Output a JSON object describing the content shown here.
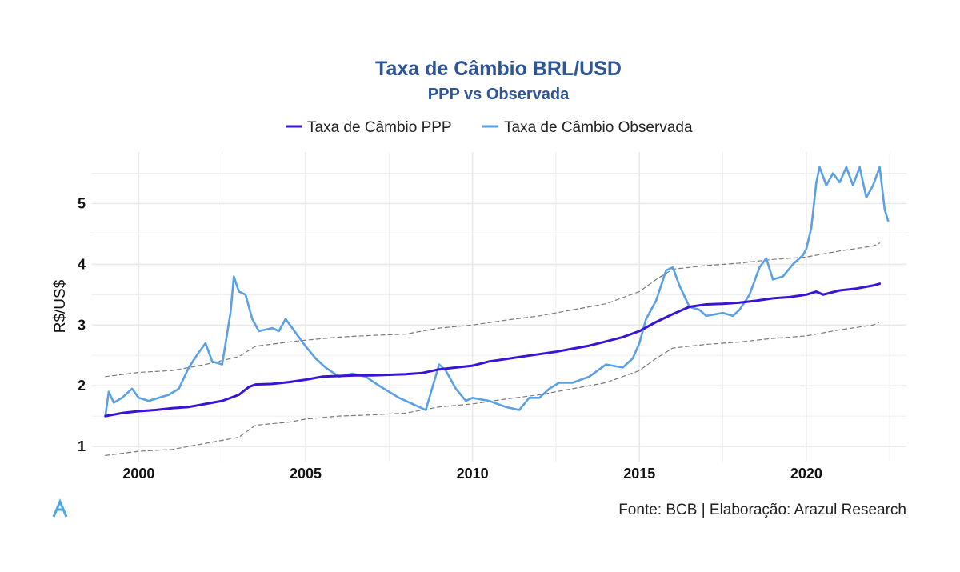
{
  "chart_data": {
    "type": "line",
    "title": "Taxa de Câmbio BRL/USD",
    "subtitle": "PPP vs Observada",
    "xlabel": "",
    "ylabel": "R$/US$",
    "xlim": [
      1998.6,
      2023.0
    ],
    "ylim": [
      0.75,
      5.85
    ],
    "x_ticks": [
      2000,
      2005,
      2010,
      2015,
      2020
    ],
    "y_ticks": [
      1,
      2,
      3,
      4,
      5
    ],
    "grid": true,
    "legend_position": "top",
    "colors": {
      "title": "#2d5597",
      "ppp": "#3a14d6",
      "observada": "#5aa0e6",
      "band": "#7a7a7a",
      "grid": "#e9e9e9",
      "logo": "#4aa8e0"
    },
    "series": [
      {
        "name": "Taxa de Câmbio PPP",
        "style": "solid",
        "points": [
          [
            1999.0,
            1.5
          ],
          [
            1999.5,
            1.55
          ],
          [
            2000.0,
            1.58
          ],
          [
            2000.5,
            1.6
          ],
          [
            2001.0,
            1.63
          ],
          [
            2001.5,
            1.65
          ],
          [
            2002.0,
            1.7
          ],
          [
            2002.5,
            1.75
          ],
          [
            2003.0,
            1.85
          ],
          [
            2003.3,
            1.98
          ],
          [
            2003.5,
            2.02
          ],
          [
            2004.0,
            2.03
          ],
          [
            2004.5,
            2.06
          ],
          [
            2005.0,
            2.1
          ],
          [
            2005.5,
            2.15
          ],
          [
            2006.0,
            2.16
          ],
          [
            2006.5,
            2.17
          ],
          [
            2007.0,
            2.17
          ],
          [
            2007.5,
            2.18
          ],
          [
            2008.0,
            2.19
          ],
          [
            2008.5,
            2.21
          ],
          [
            2009.0,
            2.27
          ],
          [
            2009.5,
            2.3
          ],
          [
            2010.0,
            2.33
          ],
          [
            2010.5,
            2.4
          ],
          [
            2011.0,
            2.44
          ],
          [
            2011.5,
            2.48
          ],
          [
            2012.0,
            2.52
          ],
          [
            2012.5,
            2.56
          ],
          [
            2013.0,
            2.61
          ],
          [
            2013.5,
            2.66
          ],
          [
            2014.0,
            2.73
          ],
          [
            2014.5,
            2.8
          ],
          [
            2015.0,
            2.9
          ],
          [
            2015.5,
            3.05
          ],
          [
            2016.0,
            3.18
          ],
          [
            2016.5,
            3.3
          ],
          [
            2017.0,
            3.34
          ],
          [
            2017.5,
            3.35
          ],
          [
            2018.0,
            3.37
          ],
          [
            2018.5,
            3.4
          ],
          [
            2019.0,
            3.44
          ],
          [
            2019.5,
            3.46
          ],
          [
            2020.0,
            3.5
          ],
          [
            2020.3,
            3.55
          ],
          [
            2020.5,
            3.5
          ],
          [
            2021.0,
            3.57
          ],
          [
            2021.5,
            3.6
          ],
          [
            2022.0,
            3.65
          ],
          [
            2022.2,
            3.68
          ]
        ]
      },
      {
        "name": "Taxa de Câmbio Observada",
        "style": "solid",
        "points": [
          [
            1999.0,
            1.5
          ],
          [
            1999.1,
            1.9
          ],
          [
            1999.25,
            1.72
          ],
          [
            1999.5,
            1.8
          ],
          [
            1999.8,
            1.95
          ],
          [
            2000.0,
            1.8
          ],
          [
            2000.3,
            1.75
          ],
          [
            2000.6,
            1.8
          ],
          [
            2000.9,
            1.85
          ],
          [
            2001.2,
            1.95
          ],
          [
            2001.5,
            2.3
          ],
          [
            2001.8,
            2.55
          ],
          [
            2002.0,
            2.7
          ],
          [
            2002.2,
            2.4
          ],
          [
            2002.5,
            2.35
          ],
          [
            2002.75,
            3.2
          ],
          [
            2002.85,
            3.8
          ],
          [
            2003.0,
            3.55
          ],
          [
            2003.2,
            3.5
          ],
          [
            2003.4,
            3.1
          ],
          [
            2003.6,
            2.9
          ],
          [
            2004.0,
            2.95
          ],
          [
            2004.2,
            2.9
          ],
          [
            2004.4,
            3.1
          ],
          [
            2004.6,
            2.95
          ],
          [
            2005.0,
            2.65
          ],
          [
            2005.3,
            2.45
          ],
          [
            2005.6,
            2.3
          ],
          [
            2006.0,
            2.15
          ],
          [
            2006.4,
            2.2
          ],
          [
            2006.8,
            2.15
          ],
          [
            2007.2,
            2.0
          ],
          [
            2007.5,
            1.9
          ],
          [
            2007.8,
            1.8
          ],
          [
            2008.2,
            1.7
          ],
          [
            2008.6,
            1.6
          ],
          [
            2009.0,
            2.35
          ],
          [
            2009.2,
            2.25
          ],
          [
            2009.5,
            1.95
          ],
          [
            2009.8,
            1.75
          ],
          [
            2010.0,
            1.8
          ],
          [
            2010.5,
            1.75
          ],
          [
            2011.0,
            1.65
          ],
          [
            2011.4,
            1.6
          ],
          [
            2011.7,
            1.8
          ],
          [
            2012.0,
            1.8
          ],
          [
            2012.3,
            1.95
          ],
          [
            2012.6,
            2.05
          ],
          [
            2013.0,
            2.05
          ],
          [
            2013.5,
            2.15
          ],
          [
            2014.0,
            2.35
          ],
          [
            2014.5,
            2.3
          ],
          [
            2014.8,
            2.45
          ],
          [
            2015.0,
            2.7
          ],
          [
            2015.2,
            3.1
          ],
          [
            2015.5,
            3.4
          ],
          [
            2015.8,
            3.9
          ],
          [
            2016.0,
            3.95
          ],
          [
            2016.2,
            3.65
          ],
          [
            2016.5,
            3.3
          ],
          [
            2016.8,
            3.25
          ],
          [
            2017.0,
            3.15
          ],
          [
            2017.5,
            3.2
          ],
          [
            2017.8,
            3.15
          ],
          [
            2018.0,
            3.25
          ],
          [
            2018.3,
            3.5
          ],
          [
            2018.6,
            3.95
          ],
          [
            2018.8,
            4.1
          ],
          [
            2019.0,
            3.75
          ],
          [
            2019.3,
            3.8
          ],
          [
            2019.6,
            4.0
          ],
          [
            2019.9,
            4.15
          ],
          [
            2020.0,
            4.25
          ],
          [
            2020.15,
            4.6
          ],
          [
            2020.3,
            5.35
          ],
          [
            2020.4,
            5.6
          ],
          [
            2020.6,
            5.3
          ],
          [
            2020.8,
            5.5
          ],
          [
            2021.0,
            5.35
          ],
          [
            2021.2,
            5.6
          ],
          [
            2021.4,
            5.3
          ],
          [
            2021.6,
            5.6
          ],
          [
            2021.8,
            5.1
          ],
          [
            2022.0,
            5.3
          ],
          [
            2022.2,
            5.6
          ],
          [
            2022.35,
            4.9
          ],
          [
            2022.45,
            4.72
          ]
        ]
      },
      {
        "name": "",
        "style": "dashed",
        "points": [
          [
            1999.0,
            2.15
          ],
          [
            2000.0,
            2.22
          ],
          [
            2001.0,
            2.25
          ],
          [
            2002.0,
            2.35
          ],
          [
            2003.0,
            2.48
          ],
          [
            2003.5,
            2.65
          ],
          [
            2004.5,
            2.72
          ],
          [
            2005.0,
            2.75
          ],
          [
            2006.0,
            2.8
          ],
          [
            2007.0,
            2.83
          ],
          [
            2008.0,
            2.85
          ],
          [
            2009.0,
            2.95
          ],
          [
            2010.0,
            3.0
          ],
          [
            2011.0,
            3.08
          ],
          [
            2012.0,
            3.15
          ],
          [
            2013.0,
            3.25
          ],
          [
            2014.0,
            3.35
          ],
          [
            2015.0,
            3.55
          ],
          [
            2015.5,
            3.75
          ],
          [
            2016.0,
            3.92
          ],
          [
            2017.0,
            3.98
          ],
          [
            2018.0,
            4.02
          ],
          [
            2019.0,
            4.08
          ],
          [
            2020.0,
            4.12
          ],
          [
            2021.0,
            4.22
          ],
          [
            2022.0,
            4.3
          ],
          [
            2022.2,
            4.35
          ]
        ]
      },
      {
        "name": "",
        "style": "dashed",
        "points": [
          [
            1999.0,
            0.85
          ],
          [
            2000.0,
            0.92
          ],
          [
            2001.0,
            0.95
          ],
          [
            2002.0,
            1.05
          ],
          [
            2003.0,
            1.15
          ],
          [
            2003.5,
            1.35
          ],
          [
            2004.5,
            1.4
          ],
          [
            2005.0,
            1.45
          ],
          [
            2006.0,
            1.5
          ],
          [
            2007.0,
            1.52
          ],
          [
            2008.0,
            1.55
          ],
          [
            2009.0,
            1.65
          ],
          [
            2010.0,
            1.7
          ],
          [
            2011.0,
            1.78
          ],
          [
            2012.0,
            1.85
          ],
          [
            2013.0,
            1.95
          ],
          [
            2014.0,
            2.05
          ],
          [
            2015.0,
            2.25
          ],
          [
            2015.5,
            2.45
          ],
          [
            2016.0,
            2.62
          ],
          [
            2017.0,
            2.68
          ],
          [
            2018.0,
            2.72
          ],
          [
            2019.0,
            2.78
          ],
          [
            2020.0,
            2.82
          ],
          [
            2021.0,
            2.92
          ],
          [
            2022.0,
            3.0
          ],
          [
            2022.2,
            3.05
          ]
        ]
      }
    ]
  },
  "caption": "Fonte: BCB | Elaboração: Arazul Research",
  "logo": {
    "icon": "arazul-a-logo-icon"
  }
}
